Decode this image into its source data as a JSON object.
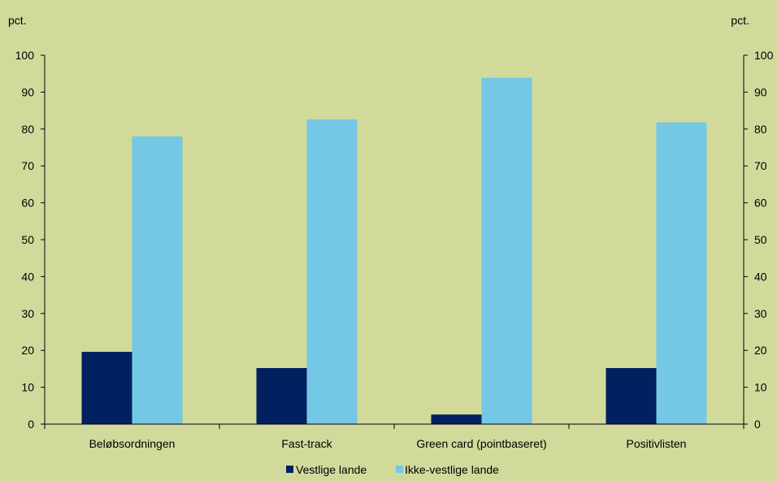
{
  "chart_data": {
    "type": "bar",
    "categories": [
      "Beløbsordningen",
      "Fast-track",
      "Green card (pointbaseret)",
      "Positivlisten"
    ],
    "series": [
      {
        "name": "Vestlige lande",
        "values": [
          19.6,
          15.2,
          2.6,
          15.2
        ],
        "color": "#002060"
      },
      {
        "name": "Ikke-vestlige lande",
        "values": [
          78.0,
          82.6,
          93.9,
          81.8
        ],
        "color": "#74c8e6"
      }
    ],
    "ylim": [
      0,
      100
    ],
    "yticks": [
      0,
      10,
      20,
      30,
      40,
      50,
      60,
      70,
      80,
      90,
      100
    ],
    "left_unit": "pct.",
    "right_unit": "pct.",
    "grid": false,
    "legend_position": "bottom-center",
    "background": "#d1da9b"
  }
}
